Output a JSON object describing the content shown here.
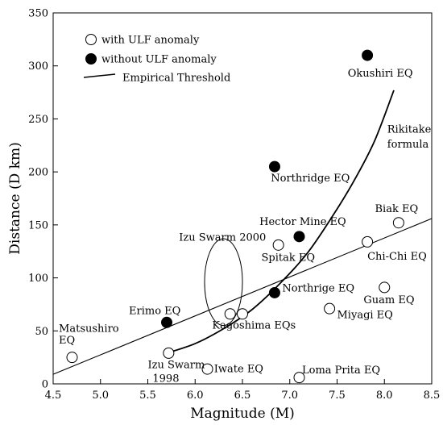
{
  "chart_data": {
    "type": "scatter",
    "xlabel": "Magnitude (M)",
    "ylabel": "Distance (D km)",
    "xlim": [
      4.5,
      8.5
    ],
    "ylim": [
      0,
      350
    ],
    "xticks": [
      "4.5",
      "5.0",
      "5.5",
      "6.0",
      "6.5",
      "7.0",
      "7.5",
      "8.0",
      "8.5"
    ],
    "yticks": [
      "0",
      "50",
      "100",
      "150",
      "200",
      "250",
      "300",
      "350"
    ],
    "grid": false,
    "legend_position": "top-left",
    "legend": [
      {
        "label": "with ULF anomaly",
        "marker": "open-circle"
      },
      {
        "label": "without ULF anomaly",
        "marker": "filled-circle"
      },
      {
        "label": "Empirical Threshold",
        "marker": "line"
      }
    ],
    "series": [
      {
        "name": "with ULF anomaly",
        "marker": "open",
        "points": [
          {
            "x": 4.7,
            "y": 25
          },
          {
            "x": 5.72,
            "y": 29
          },
          {
            "x": 6.13,
            "y": 14
          },
          {
            "x": 6.37,
            "y": 66
          },
          {
            "x": 6.5,
            "y": 66
          },
          {
            "x": 6.88,
            "y": 131
          },
          {
            "x": 7.1,
            "y": 6
          },
          {
            "x": 7.42,
            "y": 71
          },
          {
            "x": 7.82,
            "y": 134
          },
          {
            "x": 8.0,
            "y": 91
          },
          {
            "x": 8.15,
            "y": 152
          }
        ]
      },
      {
        "name": "without ULF anomaly",
        "marker": "filled",
        "points": [
          {
            "x": 5.7,
            "y": 58
          },
          {
            "x": 6.84,
            "y": 86
          },
          {
            "x": 6.84,
            "y": 205
          },
          {
            "x": 7.1,
            "y": 139
          },
          {
            "x": 7.82,
            "y": 310
          }
        ]
      }
    ],
    "threshold_curve": [
      [
        5.7,
        29
      ],
      [
        6.0,
        38
      ],
      [
        6.3,
        52
      ],
      [
        6.6,
        70
      ],
      [
        6.9,
        95
      ],
      [
        7.2,
        125
      ],
      [
        7.5,
        165
      ],
      [
        7.7,
        195
      ],
      [
        7.9,
        230
      ],
      [
        8.1,
        277
      ]
    ],
    "linear_fit": [
      [
        4.5,
        9
      ],
      [
        8.5,
        156
      ]
    ],
    "izu_ellipse": {
      "cx": 6.3,
      "cy": 96,
      "rx": 0.2,
      "ry": 41
    },
    "annotations": [
      {
        "id": "okushiri",
        "text": "Okushiri EQ",
        "x": 8.3,
        "y": 290,
        "anchor": "end"
      },
      {
        "id": "rikitake1",
        "text": "Rikitake",
        "x": 8.03,
        "y": 237,
        "anchor": "start"
      },
      {
        "id": "rikitake2",
        "text": "formula",
        "x": 8.03,
        "y": 223,
        "anchor": "start"
      },
      {
        "id": "northridge",
        "text": "Northridge EQ",
        "x": 6.8,
        "y": 191,
        "anchor": "start"
      },
      {
        "id": "biak",
        "text": "Biak EQ",
        "x": 7.9,
        "y": 162,
        "anchor": "start"
      },
      {
        "id": "hector",
        "text": "Hector Mine EQ",
        "x": 6.68,
        "y": 150,
        "anchor": "start"
      },
      {
        "id": "izu2000",
        "text": "Izu Swarm 2000",
        "x": 5.83,
        "y": 135,
        "anchor": "start"
      },
      {
        "id": "spitak",
        "text": "Spitak EQ",
        "x": 6.7,
        "y": 116,
        "anchor": "start"
      },
      {
        "id": "chichi",
        "text": "Chi-Chi EQ",
        "x": 7.82,
        "y": 117,
        "anchor": "start"
      },
      {
        "id": "northrige",
        "text": "Northrige EQ",
        "x": 6.92,
        "y": 87,
        "anchor": "start"
      },
      {
        "id": "guam",
        "text": "Guam EQ",
        "x": 7.78,
        "y": 76,
        "anchor": "start"
      },
      {
        "id": "erimo",
        "text": "Erimo EQ",
        "x": 5.3,
        "y": 66,
        "anchor": "start"
      },
      {
        "id": "miyagi",
        "text": "Miyagi EQ",
        "x": 7.5,
        "y": 62,
        "anchor": "start"
      },
      {
        "id": "kagoshima",
        "text": "Kagoshima EQs",
        "x": 6.18,
        "y": 52,
        "anchor": "start"
      },
      {
        "id": "matsushiro1",
        "text": "Matsushiro",
        "x": 4.56,
        "y": 49,
        "anchor": "start"
      },
      {
        "id": "matsushiro2",
        "text": "EQ",
        "x": 4.56,
        "y": 38,
        "anchor": "start"
      },
      {
        "id": "izuswarm",
        "text": "Izu Swarm",
        "x": 5.5,
        "y": 15,
        "anchor": "start"
      },
      {
        "id": "izu1998",
        "text": "1998",
        "x": 5.55,
        "y": 2,
        "anchor": "start"
      },
      {
        "id": "iwate",
        "text": "Iwate EQ",
        "x": 6.2,
        "y": 11,
        "anchor": "start"
      },
      {
        "id": "lomaprita",
        "text": "Loma Prita EQ",
        "x": 7.13,
        "y": 10,
        "anchor": "start"
      }
    ]
  }
}
